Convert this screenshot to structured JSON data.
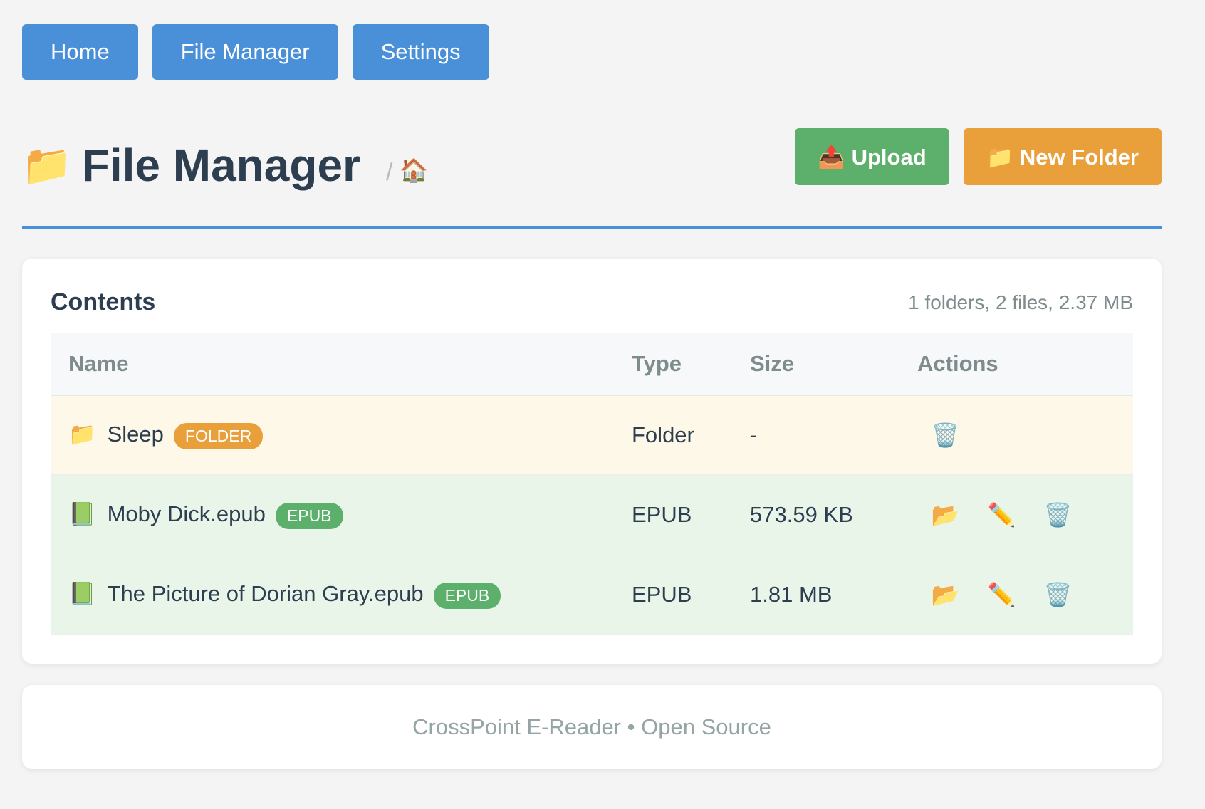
{
  "nav": [
    "Home",
    "File Manager",
    "Settings"
  ],
  "header": {
    "title": "File Manager",
    "separator": "/",
    "folder_icon": "📁",
    "home_icon": "🏠",
    "upload": "Upload",
    "upload_icon": "📤",
    "new_folder": "New Folder",
    "new_folder_icon": "📁"
  },
  "contents": {
    "heading": "Contents",
    "summary": "1 folders, 2 files, 2.37 MB",
    "columns": [
      "Name",
      "Type",
      "Size",
      "Actions"
    ],
    "rows": [
      {
        "icon": "📁",
        "name": "Sleep",
        "badge": "FOLDER",
        "type": "Folder",
        "size": "-"
      },
      {
        "icon": "📗",
        "name": "Moby Dick.epub",
        "badge": "EPUB",
        "type": "EPUB",
        "size": "573.59 KB"
      },
      {
        "icon": "📗",
        "name": "The Picture of Dorian Gray.epub",
        "badge": "EPUB",
        "type": "EPUB",
        "size": "1.81 MB"
      }
    ]
  },
  "action_icons": {
    "move": "📂",
    "rename": "✏️",
    "delete": "🗑️"
  },
  "footer": "CrossPoint E-Reader • Open Source"
}
